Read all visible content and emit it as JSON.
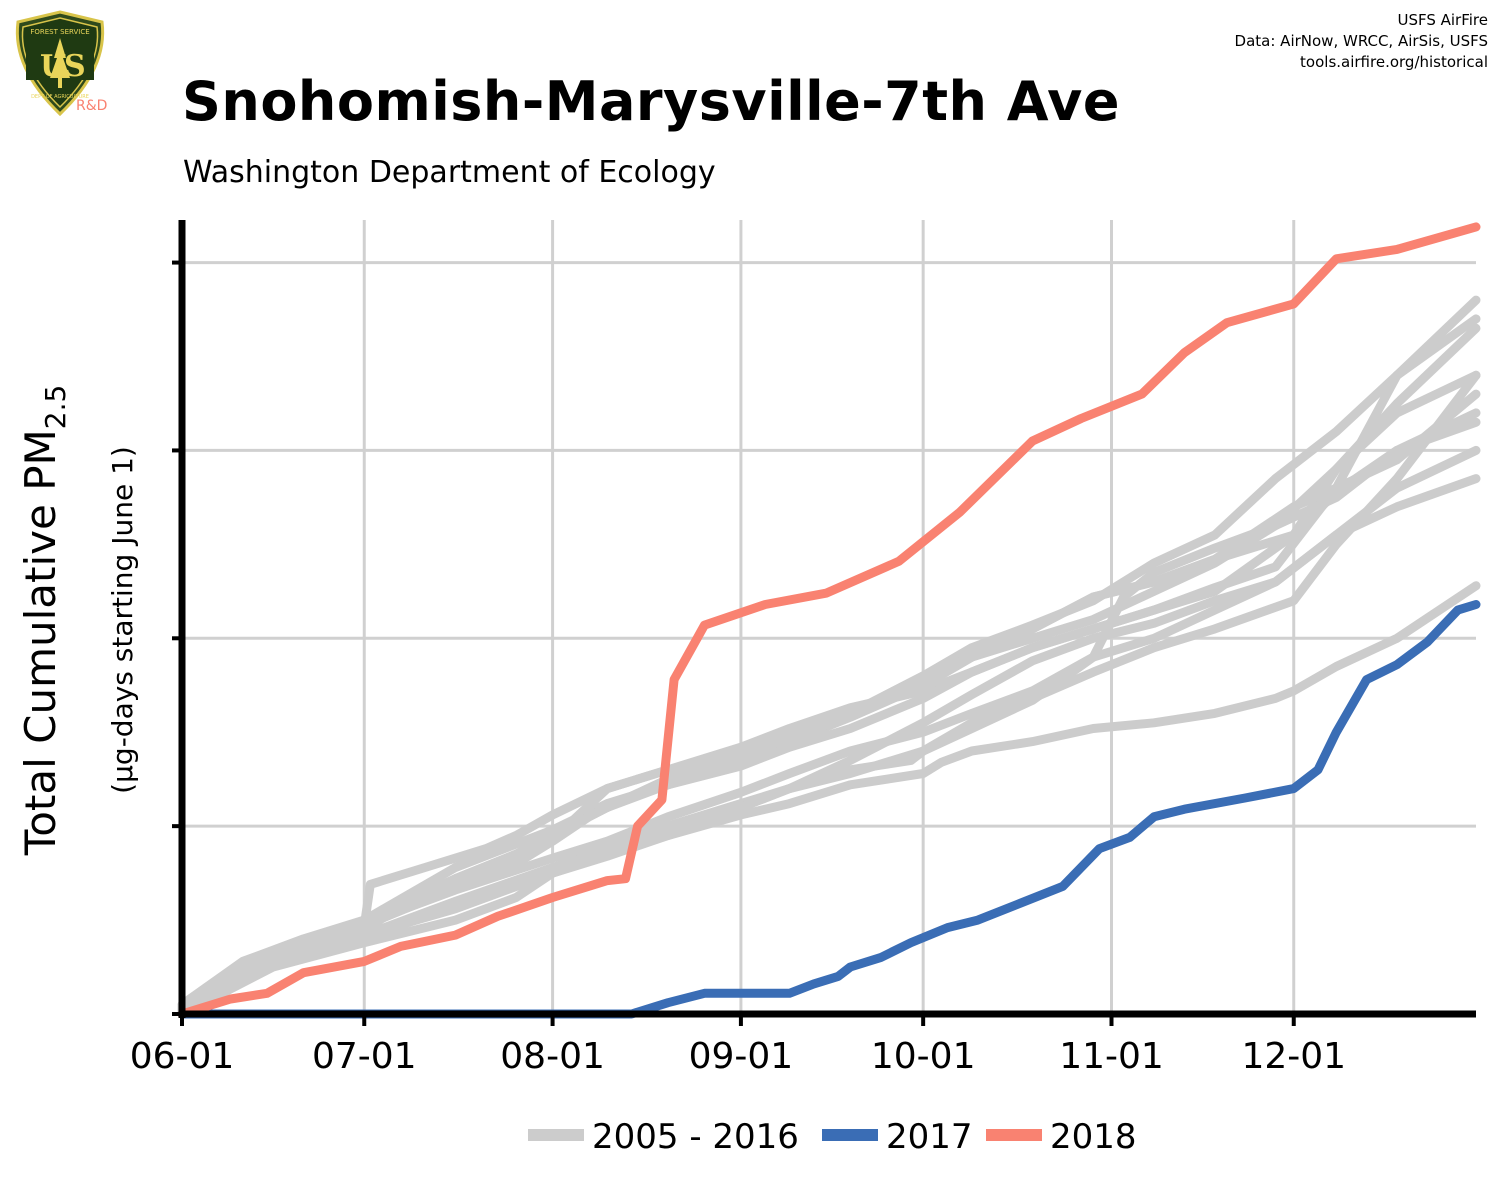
{
  "logo": {
    "text": "US",
    "arc_text": "FOREST SERVICE",
    "bottom_text": "DEPARTMENT OF AGRICULTURE",
    "tag": "R&D"
  },
  "credits": [
    "USFS AirFire",
    "Data: AirNow, WRCC, AirSis, USFS",
    "tools.airfire.org/historical"
  ],
  "colors": {
    "history": "#cccccc",
    "y2017": "#3a6db5",
    "y2018": "#f98271",
    "grid": "#d0d0d0",
    "axis": "#000000"
  },
  "chart_data": {
    "type": "line",
    "title": "Snohomish-Marysville-7th Ave",
    "subtitle": "Washington Department of Ecology",
    "ylabel": "Total Cumulative PM",
    "ylabel_sub": "2.5",
    "ylabel_units": "(µg-days starting June 1)",
    "x_ticks": [
      "06-01",
      "07-01",
      "08-01",
      "09-01",
      "10-01",
      "11-01",
      "12-01"
    ],
    "x_tick_days": [
      0,
      30,
      61,
      92,
      122,
      153,
      183
    ],
    "xlim": [
      0,
      213
    ],
    "ylim": [
      0,
      4.2
    ],
    "y_gridlines": [
      0,
      1,
      2,
      3,
      4
    ],
    "y_tick_labels_shown": false,
    "grid": true,
    "legend": {
      "position": "bottom",
      "items": [
        {
          "label": "2005 - 2016",
          "color": "#cccccc"
        },
        {
          "label": "2017",
          "color": "#3a6db5"
        },
        {
          "label": "2018",
          "color": "#f98271"
        }
      ]
    },
    "series": [
      {
        "legend": "2005 - 2016",
        "color": "#cccccc",
        "points": [
          [
            0,
            0
          ],
          [
            10,
            0.22
          ],
          [
            20,
            0.35
          ],
          [
            30,
            0.47
          ],
          [
            31,
            0.69
          ],
          [
            40,
            0.78
          ],
          [
            50,
            0.88
          ],
          [
            55,
            0.95
          ],
          [
            61,
            1.06
          ],
          [
            70,
            1.2
          ],
          [
            80,
            1.3
          ],
          [
            92,
            1.4
          ],
          [
            100,
            1.48
          ],
          [
            110,
            1.6
          ],
          [
            122,
            1.75
          ],
          [
            130,
            1.9
          ],
          [
            140,
            2.05
          ],
          [
            150,
            2.22
          ],
          [
            160,
            2.3
          ],
          [
            170,
            2.42
          ],
          [
            183,
            2.55
          ],
          [
            190,
            2.78
          ],
          [
            200,
            3.0
          ],
          [
            213,
            3.2
          ]
        ]
      },
      {
        "legend": "2005 - 2016",
        "color": "#cccccc",
        "points": [
          [
            0,
            0.03
          ],
          [
            15,
            0.3
          ],
          [
            30,
            0.45
          ],
          [
            40,
            0.65
          ],
          [
            55,
            0.85
          ],
          [
            61,
            0.96
          ],
          [
            65,
            1.04
          ],
          [
            70,
            1.1
          ],
          [
            80,
            1.25
          ],
          [
            92,
            1.38
          ],
          [
            100,
            1.45
          ],
          [
            110,
            1.58
          ],
          [
            122,
            1.75
          ],
          [
            130,
            1.9
          ],
          [
            140,
            2.0
          ],
          [
            150,
            2.1
          ],
          [
            160,
            2.25
          ],
          [
            170,
            2.4
          ],
          [
            180,
            2.6
          ],
          [
            190,
            2.9
          ],
          [
            200,
            3.25
          ],
          [
            213,
            3.65
          ]
        ]
      },
      {
        "legend": "2005 - 2016",
        "color": "#cccccc",
        "points": [
          [
            0,
            0.02
          ],
          [
            15,
            0.3
          ],
          [
            30,
            0.46
          ],
          [
            45,
            0.72
          ],
          [
            61,
            0.93
          ],
          [
            66,
            1.08
          ],
          [
            70,
            1.2
          ],
          [
            80,
            1.3
          ],
          [
            92,
            1.42
          ],
          [
            100,
            1.52
          ],
          [
            110,
            1.63
          ],
          [
            122,
            1.72
          ],
          [
            130,
            1.82
          ],
          [
            140,
            1.95
          ],
          [
            150,
            2.05
          ],
          [
            160,
            2.15
          ],
          [
            170,
            2.25
          ],
          [
            183,
            2.55
          ],
          [
            190,
            2.9
          ],
          [
            200,
            3.2
          ],
          [
            213,
            3.4
          ]
        ]
      },
      {
        "legend": "2005 - 2016",
        "color": "#cccccc",
        "points": [
          [
            0,
            0
          ],
          [
            15,
            0.28
          ],
          [
            30,
            0.42
          ],
          [
            45,
            0.6
          ],
          [
            61,
            0.78
          ],
          [
            70,
            0.88
          ],
          [
            80,
            1.0
          ],
          [
            92,
            1.12
          ],
          [
            100,
            1.2
          ],
          [
            110,
            1.3
          ],
          [
            120,
            1.35
          ],
          [
            122,
            1.4
          ],
          [
            130,
            1.52
          ],
          [
            140,
            1.67
          ],
          [
            150,
            1.9
          ],
          [
            155,
            2.22
          ],
          [
            160,
            2.35
          ],
          [
            170,
            2.48
          ],
          [
            180,
            2.6
          ],
          [
            190,
            2.75
          ],
          [
            200,
            3.0
          ],
          [
            213,
            3.15
          ]
        ]
      },
      {
        "legend": "2005 - 2016",
        "color": "#cccccc",
        "points": [
          [
            0,
            0
          ],
          [
            20,
            0.36
          ],
          [
            30,
            0.48
          ],
          [
            45,
            0.66
          ],
          [
            61,
            0.83
          ],
          [
            70,
            0.92
          ],
          [
            80,
            1.05
          ],
          [
            92,
            1.18
          ],
          [
            100,
            1.28
          ],
          [
            110,
            1.4
          ],
          [
            122,
            1.5
          ],
          [
            130,
            1.6
          ],
          [
            140,
            1.72
          ],
          [
            150,
            1.9
          ],
          [
            160,
            2.0
          ],
          [
            170,
            2.15
          ],
          [
            180,
            2.3
          ],
          [
            190,
            2.55
          ],
          [
            200,
            2.7
          ],
          [
            213,
            2.85
          ]
        ]
      },
      {
        "legend": "2005 - 2016",
        "color": "#cccccc",
        "points": [
          [
            0,
            0.03
          ],
          [
            15,
            0.32
          ],
          [
            30,
            0.5
          ],
          [
            45,
            0.78
          ],
          [
            61,
            0.98
          ],
          [
            70,
            1.12
          ],
          [
            80,
            1.22
          ],
          [
            92,
            1.32
          ],
          [
            100,
            1.42
          ],
          [
            110,
            1.52
          ],
          [
            122,
            1.68
          ],
          [
            130,
            1.82
          ],
          [
            140,
            1.95
          ],
          [
            150,
            2.05
          ],
          [
            160,
            2.15
          ],
          [
            170,
            2.27
          ],
          [
            180,
            2.38
          ],
          [
            190,
            2.8
          ],
          [
            200,
            3.4
          ],
          [
            213,
            3.7
          ]
        ]
      },
      {
        "legend": "2005 - 2016",
        "color": "#cccccc",
        "points": [
          [
            0,
            0.02
          ],
          [
            15,
            0.27
          ],
          [
            30,
            0.4
          ],
          [
            45,
            0.58
          ],
          [
            61,
            0.76
          ],
          [
            70,
            0.86
          ],
          [
            80,
            1.0
          ],
          [
            92,
            1.1
          ],
          [
            100,
            1.2
          ],
          [
            110,
            1.35
          ],
          [
            122,
            1.55
          ],
          [
            130,
            1.7
          ],
          [
            140,
            1.88
          ],
          [
            150,
            2.0
          ],
          [
            160,
            2.08
          ],
          [
            170,
            2.2
          ],
          [
            180,
            2.3
          ],
          [
            190,
            2.55
          ],
          [
            200,
            2.8
          ],
          [
            213,
            3.0
          ]
        ]
      },
      {
        "legend": "2005 - 2016",
        "color": "#cccccc",
        "points": [
          [
            0,
            0.05
          ],
          [
            10,
            0.28
          ],
          [
            20,
            0.4
          ],
          [
            30,
            0.5
          ],
          [
            45,
            0.72
          ],
          [
            55,
            0.85
          ],
          [
            61,
            0.95
          ],
          [
            70,
            1.1
          ],
          [
            80,
            1.25
          ],
          [
            90,
            1.38
          ],
          [
            100,
            1.45
          ],
          [
            110,
            1.6
          ],
          [
            122,
            1.8
          ],
          [
            130,
            1.95
          ],
          [
            140,
            2.07
          ],
          [
            150,
            2.2
          ],
          [
            160,
            2.4
          ],
          [
            170,
            2.55
          ],
          [
            180,
            2.85
          ],
          [
            190,
            3.1
          ],
          [
            200,
            3.4
          ],
          [
            213,
            3.8
          ]
        ]
      },
      {
        "legend": "2005 - 2016",
        "color": "#cccccc",
        "points": [
          [
            0,
            0.04
          ],
          [
            15,
            0.32
          ],
          [
            30,
            0.47
          ],
          [
            45,
            0.67
          ],
          [
            55,
            0.8
          ],
          [
            61,
            0.92
          ],
          [
            67,
            1.05
          ],
          [
            70,
            1.1
          ],
          [
            80,
            1.22
          ],
          [
            92,
            1.35
          ],
          [
            100,
            1.48
          ],
          [
            110,
            1.6
          ],
          [
            122,
            1.8
          ],
          [
            130,
            1.9
          ],
          [
            140,
            2.05
          ],
          [
            150,
            2.22
          ],
          [
            160,
            2.3
          ],
          [
            170,
            2.42
          ],
          [
            183,
            2.7
          ],
          [
            190,
            2.8
          ],
          [
            200,
            2.95
          ],
          [
            213,
            3.3
          ]
        ]
      },
      {
        "legend": "2005 - 2016",
        "color": "#cccccc",
        "points": [
          [
            0,
            0.02
          ],
          [
            15,
            0.28
          ],
          [
            30,
            0.42
          ],
          [
            45,
            0.56
          ],
          [
            61,
            0.75
          ],
          [
            70,
            0.84
          ],
          [
            80,
            0.95
          ],
          [
            92,
            1.06
          ],
          [
            100,
            1.12
          ],
          [
            110,
            1.22
          ],
          [
            122,
            1.28
          ],
          [
            125,
            1.34
          ],
          [
            130,
            1.4
          ],
          [
            140,
            1.45
          ],
          [
            150,
            1.52
          ],
          [
            160,
            1.55
          ],
          [
            170,
            1.6
          ],
          [
            180,
            1.68
          ],
          [
            183,
            1.72
          ],
          [
            190,
            1.85
          ],
          [
            200,
            2.0
          ],
          [
            213,
            2.28
          ]
        ]
      },
      {
        "legend": "2005 - 2016",
        "color": "#cccccc",
        "points": [
          [
            0,
            0
          ],
          [
            15,
            0.25
          ],
          [
            30,
            0.38
          ],
          [
            45,
            0.5
          ],
          [
            55,
            0.62
          ],
          [
            61,
            0.75
          ],
          [
            70,
            0.85
          ],
          [
            80,
            0.95
          ],
          [
            92,
            1.1
          ],
          [
            100,
            1.2
          ],
          [
            110,
            1.28
          ],
          [
            122,
            1.4
          ],
          [
            130,
            1.55
          ],
          [
            140,
            1.68
          ],
          [
            150,
            1.82
          ],
          [
            160,
            1.95
          ],
          [
            170,
            2.05
          ],
          [
            183,
            2.2
          ],
          [
            190,
            2.5
          ],
          [
            200,
            2.85
          ],
          [
            213,
            3.4
          ]
        ]
      }
    ],
    "series_2017": {
      "name": "2017",
      "color": "#3a6db5",
      "points": [
        [
          0,
          0
        ],
        [
          74,
          0
        ],
        [
          80,
          0.06
        ],
        [
          86,
          0.11
        ],
        [
          100,
          0.11
        ],
        [
          104,
          0.16
        ],
        [
          108,
          0.2
        ],
        [
          110,
          0.25
        ],
        [
          115,
          0.3
        ],
        [
          120,
          0.38
        ],
        [
          126,
          0.46
        ],
        [
          131,
          0.5
        ],
        [
          138,
          0.59
        ],
        [
          145,
          0.68
        ],
        [
          151,
          0.88
        ],
        [
          156,
          0.94
        ],
        [
          160,
          1.05
        ],
        [
          165,
          1.09
        ],
        [
          175,
          1.15
        ],
        [
          183,
          1.2
        ],
        [
          187,
          1.3
        ],
        [
          190,
          1.5
        ],
        [
          195,
          1.78
        ],
        [
          200,
          1.86
        ],
        [
          205,
          1.98
        ],
        [
          210,
          2.15
        ],
        [
          213,
          2.18
        ]
      ]
    },
    "series_2018": {
      "name": "2018",
      "color": "#f98271",
      "points": [
        [
          0,
          0
        ],
        [
          8,
          0.08
        ],
        [
          14,
          0.11
        ],
        [
          20,
          0.22
        ],
        [
          30,
          0.28
        ],
        [
          36,
          0.36
        ],
        [
          45,
          0.42
        ],
        [
          52,
          0.52
        ],
        [
          61,
          0.62
        ],
        [
          70,
          0.71
        ],
        [
          73,
          0.72
        ],
        [
          75,
          1.0
        ],
        [
          79,
          1.14
        ],
        [
          81,
          1.78
        ],
        [
          86,
          2.07
        ],
        [
          96,
          2.18
        ],
        [
          106,
          2.24
        ],
        [
          118,
          2.41
        ],
        [
          128,
          2.67
        ],
        [
          140,
          3.05
        ],
        [
          148,
          3.17
        ],
        [
          158,
          3.3
        ],
        [
          165,
          3.52
        ],
        [
          172,
          3.68
        ],
        [
          183,
          3.78
        ],
        [
          190,
          4.02
        ],
        [
          200,
          4.07
        ],
        [
          213,
          4.19
        ]
      ]
    }
  }
}
